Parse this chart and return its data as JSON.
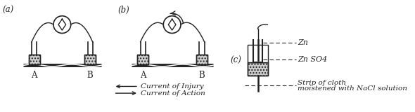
{
  "bg_color": "#ffffff",
  "fig_width": 5.9,
  "fig_height": 1.6,
  "dpi": 100,
  "label_a": "(a)",
  "label_b": "(b)",
  "label_c": "(c)",
  "text_A1": "A",
  "text_B1": "B",
  "text_A2": "A",
  "text_B2": "B",
  "arrow1_label": "Current of Injury",
  "arrow2_label": "Current of Action",
  "zn_label": "Zn",
  "znso4_label": "Zn SO4",
  "cloth_label1": "Strip of cloth",
  "cloth_label2": "moistened with NaCl solution",
  "line_color": "#222222",
  "text_color": "#222222"
}
